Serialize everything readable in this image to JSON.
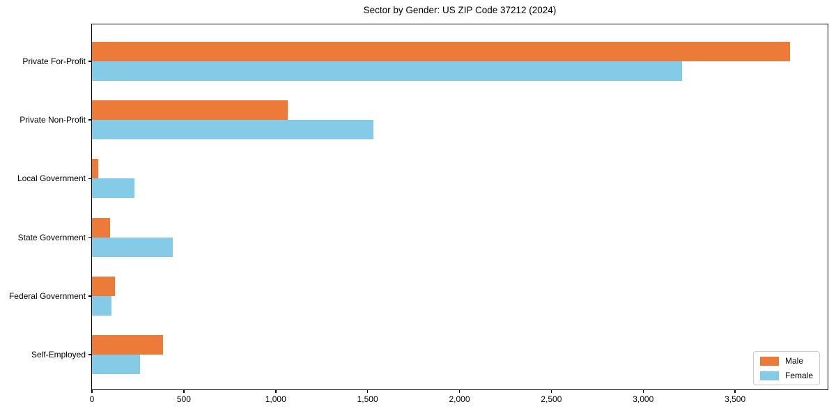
{
  "chart_data": {
    "type": "bar",
    "orientation": "horizontal",
    "title": "Sector by Gender: US ZIP Code 37212 (2024)",
    "categories": [
      "Private For-Profit",
      "Private Non-Profit",
      "Local Government",
      "State Government",
      "Federal Government",
      "Self-Employed"
    ],
    "series": [
      {
        "name": "Male",
        "color": "#ec7a39",
        "values": [
          3800,
          1065,
          35,
          100,
          125,
          385
        ]
      },
      {
        "name": "Female",
        "color": "#85cbe8",
        "values": [
          3210,
          1530,
          230,
          440,
          105,
          260
        ]
      }
    ],
    "xlabel": "",
    "ylabel": "",
    "xlim": [
      0,
      4000
    ],
    "x_ticks": [
      0,
      500,
      1000,
      1500,
      2000,
      2500,
      3000,
      3500
    ],
    "x_tick_labels": [
      "0",
      "500",
      "1,000",
      "1,500",
      "2,000",
      "2,500",
      "3,000",
      "3,500"
    ],
    "grid": false,
    "legend_position": "lower right"
  }
}
